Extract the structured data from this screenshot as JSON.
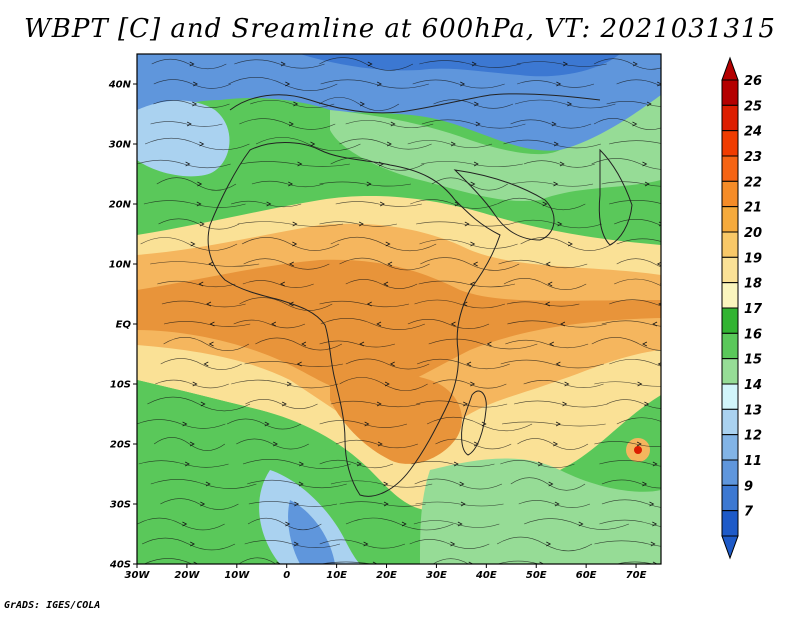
{
  "title": "WBPT [C] and Sreamline at 600hPa, VT: 2021031315",
  "footer": "GrADS: IGES/COLA",
  "map": {
    "lon_range": [
      -30,
      75
    ],
    "lat_range": [
      -40,
      45
    ],
    "lat_ticks": [
      {
        "value": 40,
        "label": "40N"
      },
      {
        "value": 30,
        "label": "30N"
      },
      {
        "value": 20,
        "label": "20N"
      },
      {
        "value": 10,
        "label": "10N"
      },
      {
        "value": 0,
        "label": "EQ"
      },
      {
        "value": -10,
        "label": "10S"
      },
      {
        "value": -20,
        "label": "20S"
      },
      {
        "value": -30,
        "label": "30S"
      },
      {
        "value": -40,
        "label": "40S"
      }
    ],
    "lon_ticks": [
      {
        "value": -30,
        "label": "30W"
      },
      {
        "value": -20,
        "label": "20W"
      },
      {
        "value": -10,
        "label": "10W"
      },
      {
        "value": 0,
        "label": "0"
      },
      {
        "value": 10,
        "label": "10E"
      },
      {
        "value": 20,
        "label": "20E"
      },
      {
        "value": 30,
        "label": "30E"
      },
      {
        "value": 40,
        "label": "40E"
      },
      {
        "value": 50,
        "label": "50E"
      },
      {
        "value": 60,
        "label": "60E"
      },
      {
        "value": 70,
        "label": "70E"
      }
    ]
  },
  "colorbar": {
    "levels": [
      {
        "label": "26",
        "color": "#b40000"
      },
      {
        "label": "25",
        "color": "#dc1e00"
      },
      {
        "label": "24",
        "color": "#f03c00"
      },
      {
        "label": "23",
        "color": "#f56414"
      },
      {
        "label": "22",
        "color": "#f58c28"
      },
      {
        "label": "21",
        "color": "#f5aa3c"
      },
      {
        "label": "20",
        "color": "#f8c868"
      },
      {
        "label": "19",
        "color": "#fae196"
      },
      {
        "label": "18",
        "color": "#faf5be"
      },
      {
        "label": "17",
        "color": "#32b432"
      },
      {
        "label": "16",
        "color": "#5ac85a"
      },
      {
        "label": "15",
        "color": "#96dc96"
      },
      {
        "label": "14",
        "color": "#d2f5fa"
      },
      {
        "label": "13",
        "color": "#aad2f0"
      },
      {
        "label": "12",
        "color": "#82b4e6"
      },
      {
        "label": "11",
        "color": "#5f96dc"
      },
      {
        "label": "9",
        "color": "#3c78d2"
      },
      {
        "label": "7",
        "color": "#1e5ac8"
      }
    ],
    "top_color": "#b40000",
    "bottom_color": "#1e5ac8"
  },
  "colors": {
    "orange_dark": "#e8943a",
    "orange": "#f5b65e",
    "yellow": "#fae196",
    "green": "#5ac85a",
    "green_dark": "#32b432",
    "green_light": "#96dc96",
    "blue_light": "#aad2f0",
    "blue": "#5f96dc",
    "blue_dark": "#3c78d2",
    "red": "#dc1e00"
  }
}
